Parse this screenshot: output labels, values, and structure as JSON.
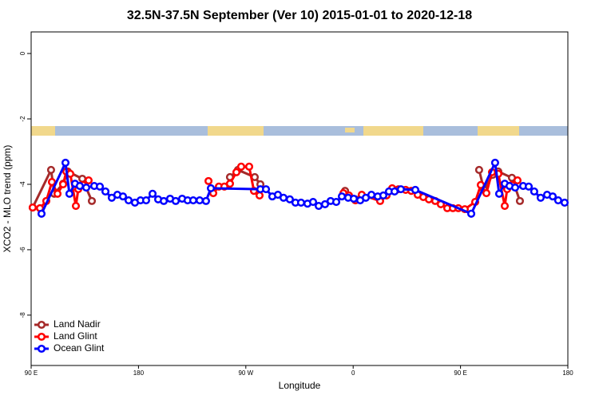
{
  "chart_data": {
    "type": "line",
    "title": "32.5N-37.5N September (Ver 10)   2015-01-01 to 2020-12-18",
    "x_label": "Longitude",
    "y_label": "XCO2 - MLO trend (ppm)",
    "xlim": [
      90,
      540
    ],
    "ylim": [
      -9.54,
      0.66
    ],
    "xticks": [
      {
        "value": 90,
        "label": "90 E"
      },
      {
        "value": 180,
        "label": "180"
      },
      {
        "value": 270,
        "label": "90 W"
      },
      {
        "value": 360,
        "label": "0"
      },
      {
        "value": 450,
        "label": "90 E"
      },
      {
        "value": 540,
        "label": "180"
      }
    ],
    "yticks": [
      0,
      -2,
      -4,
      -6,
      -8
    ],
    "legend": "bottom-left",
    "series": [
      {
        "name": "Land Nadir",
        "color": "#a52a2a",
        "x": [
          91.3,
          106.7,
          109.4,
          116.8,
          120.8,
          132.9,
          140.9,
          null,
          256.7,
          263.4,
          277.5,
          282.2,
          null,
          353.2,
          361.9,
          null,
          465.6,
          469.7,
          477.0,
          481.7,
          493.1,
          499.8
        ],
        "values": [
          -4.71,
          -3.56,
          -4.29,
          -3.98,
          -3.61,
          -3.83,
          -4.51,
          null,
          -3.78,
          -3.56,
          -3.78,
          -4.0,
          null,
          -4.2,
          -4.46,
          null,
          -3.56,
          -4.17,
          -3.71,
          -3.61,
          -3.8,
          -4.51
        ]
      },
      {
        "name": "Land Glint",
        "color": "#ff0000",
        "x": [
          91.3,
          97.4,
          102.7,
          107.4,
          112.1,
          116.8,
          119.5,
          122.8,
          127.5,
          129.5,
          133.5,
          138.2,
          null,
          238.7,
          242.7,
          247.4,
          252.0,
          256.7,
          262.1,
          266.1,
          272.8,
          276.8,
          281.5,
          null,
          351.8,
          356.5,
          361.9,
          367.2,
          382.6,
          388.0,
          392.7,
          398.0,
          404.0,
          408.7,
          414.1,
          418.8,
          423.5,
          428.8,
          433.5,
          438.9,
          443.6,
          448.2,
          453.6,
          462.3,
          467.0,
          471.7,
          476.4,
          481.7,
          487.1,
          489.1,
          493.1,
          497.8
        ],
        "values": [
          -4.71,
          -4.73,
          -4.51,
          -3.93,
          -4.29,
          -4.0,
          -3.61,
          -3.68,
          -4.66,
          -4.15,
          -4.02,
          -3.88,
          null,
          -3.9,
          -4.27,
          -4.07,
          -4.07,
          -3.98,
          -3.63,
          -3.46,
          -3.46,
          -4.2,
          -4.34,
          null,
          -4.27,
          -4.34,
          -4.49,
          -4.32,
          -4.51,
          -4.34,
          -4.12,
          -4.15,
          -4.17,
          -4.2,
          -4.32,
          -4.39,
          -4.46,
          -4.51,
          -4.61,
          -4.73,
          -4.73,
          -4.73,
          -4.76,
          -4.54,
          -4.02,
          -4.27,
          -3.63,
          -3.68,
          -4.66,
          -4.15,
          -4.02,
          -3.88
        ]
      },
      {
        "name": "Ocean Glint",
        "color": "#0000ff",
        "x": [
          98.7,
          118.8,
          122.1,
          126.8,
          130.8,
          136.2,
          142.9,
          147.6,
          152.3,
          157.6,
          162.3,
          167.0,
          171.7,
          177.0,
          181.7,
          186.4,
          191.8,
          196.5,
          201.2,
          206.5,
          211.2,
          216.6,
          221.2,
          225.9,
          231.3,
          236.6,
          240.7,
          282.2,
          286.9,
          292.2,
          296.9,
          301.6,
          306.9,
          311.6,
          316.3,
          321.7,
          326.4,
          331.1,
          336.4,
          341.1,
          345.8,
          350.5,
          355.8,
          360.5,
          365.9,
          370.6,
          375.3,
          380.6,
          385.3,
          390.0,
          394.7,
          400.0,
          412.1,
          459.0,
          479.0,
          482.4,
          487.1,
          491.1,
          495.8,
          502.5,
          507.2,
          511.8,
          517.2,
          522.6,
          527.3,
          531.9,
          537.3
        ],
        "values": [
          -4.9,
          -3.34,
          -4.29,
          -3.98,
          -4.05,
          -4.1,
          -4.05,
          -4.07,
          -4.22,
          -4.41,
          -4.32,
          -4.37,
          -4.49,
          -4.56,
          -4.49,
          -4.49,
          -4.29,
          -4.46,
          -4.51,
          -4.44,
          -4.51,
          -4.44,
          -4.49,
          -4.49,
          -4.49,
          -4.51,
          -4.12,
          -4.15,
          -4.15,
          -4.37,
          -4.32,
          -4.41,
          -4.46,
          -4.56,
          -4.56,
          -4.59,
          -4.54,
          -4.66,
          -4.61,
          -4.51,
          -4.54,
          -4.37,
          -4.41,
          -4.44,
          -4.49,
          -4.41,
          -4.32,
          -4.37,
          -4.34,
          -4.22,
          -4.22,
          -4.15,
          -4.17,
          -4.9,
          -3.34,
          -4.29,
          -3.98,
          -4.05,
          -4.1,
          -4.05,
          -4.07,
          -4.22,
          -4.41,
          -4.32,
          -4.37,
          -4.49,
          -4.56
        ]
      }
    ]
  }
}
